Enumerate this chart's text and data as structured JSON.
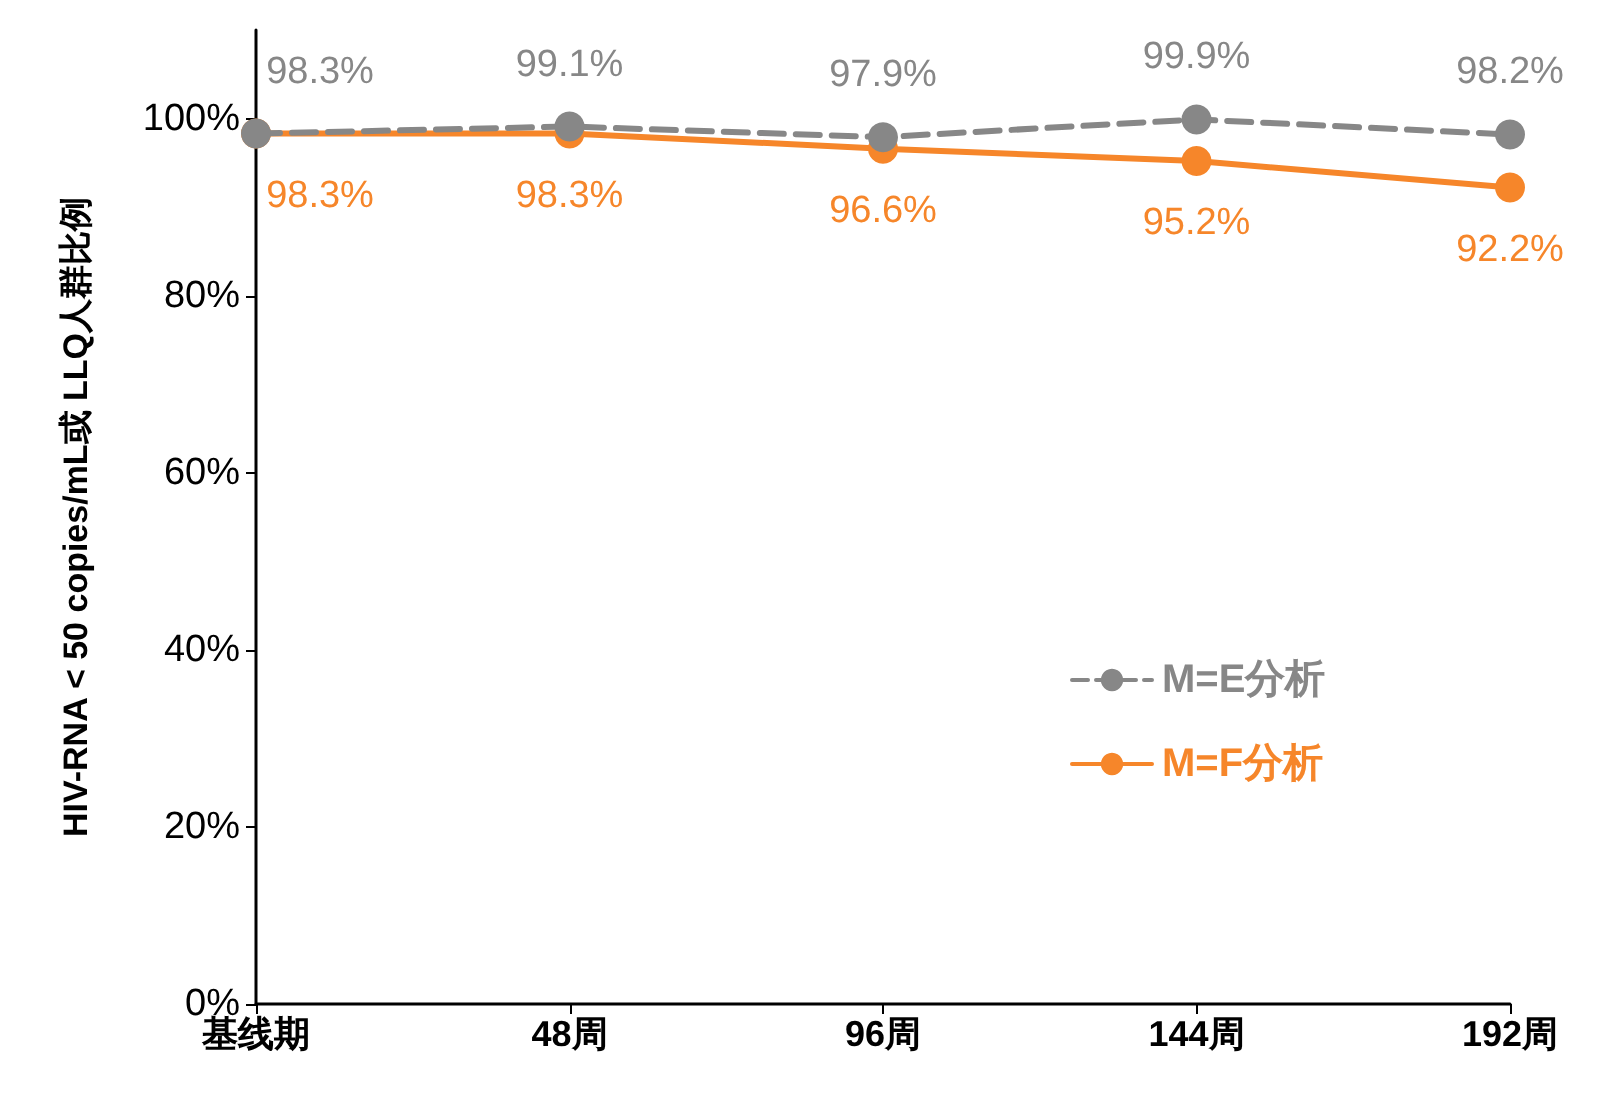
{
  "chart_data": {
    "type": "line",
    "ylabel": "HIV-RNA < 50 copies/mL或 LLQ人群比例",
    "categories": [
      "基线期",
      "48周",
      "96周",
      "144周",
      "192周"
    ],
    "series": [
      {
        "name": "M=E分析",
        "color": "#878787",
        "line_style": "dashed",
        "values": [
          98.3,
          99.1,
          97.9,
          99.9,
          98.2
        ],
        "value_labels": [
          "98.3%",
          "99.1%",
          "97.9%",
          "99.9%",
          "98.2%"
        ]
      },
      {
        "name": "M=F分析",
        "color": "#f6862a",
        "line_style": "solid",
        "values": [
          98.3,
          98.3,
          96.6,
          95.2,
          92.2
        ],
        "value_labels": [
          "98.3%",
          "98.3%",
          "96.6%",
          "95.2%",
          "92.2%"
        ]
      }
    ],
    "ylim": [
      0,
      110
    ],
    "yticks": [
      {
        "value": 0,
        "label": "0%"
      },
      {
        "value": 20,
        "label": "20%"
      },
      {
        "value": 40,
        "label": "40%"
      },
      {
        "value": 60,
        "label": "60%"
      },
      {
        "value": 80,
        "label": "80%"
      },
      {
        "value": 100,
        "label": "100%"
      }
    ],
    "marker": "circle",
    "grid": false,
    "legend": "right"
  }
}
